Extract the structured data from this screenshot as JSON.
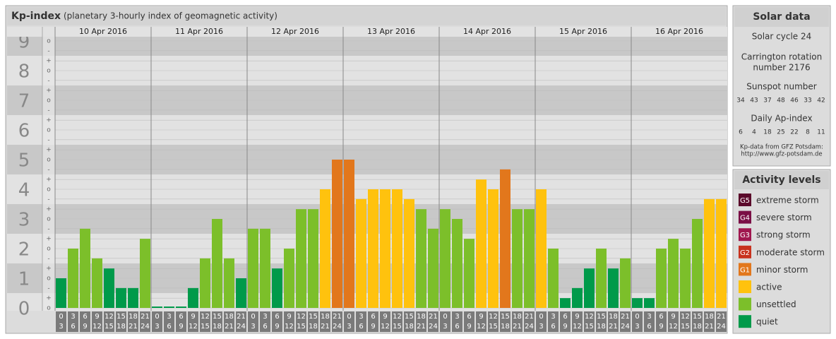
{
  "chart_data": {
    "type": "bar",
    "title": "Kp-index",
    "subtitle": "(planetary 3-hourly index of geomagnetic activity)",
    "ylim": [
      0,
      9
    ],
    "yticks": [
      0,
      1,
      2,
      3,
      4,
      5,
      6,
      7,
      8,
      9
    ],
    "minor_ticks": [
      {
        "value": 9,
        "label": "o"
      },
      {
        "value": 8.67,
        "label": "-"
      },
      {
        "value": 8.33,
        "label": "+"
      },
      {
        "value": 8,
        "label": "o"
      },
      {
        "value": 7.67,
        "label": "-"
      },
      {
        "value": 7.33,
        "label": "+"
      },
      {
        "value": 7,
        "label": "o"
      },
      {
        "value": 6.67,
        "label": "-"
      },
      {
        "value": 6.33,
        "label": "+"
      },
      {
        "value": 6,
        "label": "o"
      },
      {
        "value": 5.67,
        "label": "-"
      },
      {
        "value": 5.33,
        "label": "+"
      },
      {
        "value": 5,
        "label": "o"
      },
      {
        "value": 4.67,
        "label": "-"
      },
      {
        "value": 4.33,
        "label": "+"
      },
      {
        "value": 4,
        "label": "o"
      },
      {
        "value": 3.67,
        "label": "-"
      },
      {
        "value": 3.33,
        "label": "+"
      },
      {
        "value": 3,
        "label": "o"
      },
      {
        "value": 2.67,
        "label": "-"
      },
      {
        "value": 2.33,
        "label": "+"
      },
      {
        "value": 2,
        "label": "o"
      },
      {
        "value": 1.67,
        "label": "-"
      },
      {
        "value": 1.33,
        "label": "+"
      },
      {
        "value": 1,
        "label": "o"
      },
      {
        "value": 0.67,
        "label": "-"
      },
      {
        "value": 0.33,
        "label": "+"
      },
      {
        "value": 0,
        "label": "o"
      }
    ],
    "time_slots": [
      {
        "start": 0,
        "end": 3
      },
      {
        "start": 3,
        "end": 6
      },
      {
        "start": 6,
        "end": 9
      },
      {
        "start": 9,
        "end": 12
      },
      {
        "start": 12,
        "end": 15
      },
      {
        "start": 15,
        "end": 18
      },
      {
        "start": 18,
        "end": 21
      },
      {
        "start": 21,
        "end": 24
      }
    ],
    "days": [
      {
        "date": "10 Apr 2016",
        "values": [
          1,
          2,
          2.67,
          1.67,
          1.33,
          0.67,
          0.67,
          2.33
        ],
        "colors": [
          "#009a4a",
          "#7cbf2a",
          "#7cbf2a",
          "#7cbf2a",
          "#009a4a",
          "#009a4a",
          "#009a4a",
          "#7cbf2a"
        ]
      },
      {
        "date": "11 Apr 2016",
        "values": [
          0,
          0,
          0,
          0.67,
          1.67,
          3,
          1.67,
          1
        ],
        "colors": [
          "#009a4a",
          "#009a4a",
          "#009a4a",
          "#009a4a",
          "#7cbf2a",
          "#7cbf2a",
          "#7cbf2a",
          "#009a4a"
        ]
      },
      {
        "date": "12 Apr 2016",
        "values": [
          2.67,
          2.67,
          1.33,
          2,
          3.33,
          3.33,
          4,
          5
        ],
        "colors": [
          "#7cbf2a",
          "#7cbf2a",
          "#009a4a",
          "#7cbf2a",
          "#7cbf2a",
          "#7cbf2a",
          "#ffc20e",
          "#e2771c"
        ]
      },
      {
        "date": "13 Apr 2016",
        "values": [
          5,
          3.67,
          4,
          4,
          4,
          3.67,
          3.33,
          2.67
        ],
        "colors": [
          "#e2771c",
          "#ffc20e",
          "#ffc20e",
          "#ffc20e",
          "#ffc20e",
          "#ffc20e",
          "#7cbf2a",
          "#7cbf2a"
        ]
      },
      {
        "date": "14 Apr 2016",
        "values": [
          3.33,
          3,
          2.33,
          4.33,
          4,
          4.67,
          3.33,
          3.33
        ],
        "colors": [
          "#7cbf2a",
          "#7cbf2a",
          "#7cbf2a",
          "#ffc20e",
          "#ffc20e",
          "#e2771c",
          "#7cbf2a",
          "#7cbf2a"
        ]
      },
      {
        "date": "15 Apr 2016",
        "values": [
          4,
          2,
          0.33,
          0.67,
          1.33,
          2,
          1.33,
          1.67
        ],
        "colors": [
          "#ffc20e",
          "#7cbf2a",
          "#009a4a",
          "#009a4a",
          "#009a4a",
          "#7cbf2a",
          "#009a4a",
          "#7cbf2a"
        ]
      },
      {
        "date": "16 Apr 2016",
        "values": [
          0.33,
          0.33,
          2,
          2.33,
          2,
          3,
          3.67,
          3.67
        ],
        "colors": [
          "#009a4a",
          "#009a4a",
          "#7cbf2a",
          "#7cbf2a",
          "#7cbf2a",
          "#7cbf2a",
          "#ffc20e",
          "#ffc20e"
        ]
      }
    ]
  },
  "solar_data": {
    "title": "Solar data",
    "cycle": "Solar cycle 24",
    "carrington": [
      "Carrington rotation",
      "number 2176"
    ],
    "sunspot_title": "Sunspot number",
    "sunspot": [
      34,
      43,
      37,
      48,
      46,
      33,
      42
    ],
    "ap_title": "Daily Ap-index",
    "ap": [
      6,
      4,
      18,
      25,
      22,
      8,
      11
    ],
    "source": [
      "Kp-data from GFZ Potsdam:",
      "http://www.gfz-potsdam.de"
    ]
  },
  "activity_levels": {
    "title": "Activity levels",
    "items": [
      {
        "code": "G5",
        "label": "extreme storm",
        "color": "#5a0a2a"
      },
      {
        "code": "G4",
        "label": "severe storm",
        "color": "#7a0f45"
      },
      {
        "code": "G3",
        "label": "strong storm",
        "color": "#a0174f"
      },
      {
        "code": "G2",
        "label": "moderate storm",
        "color": "#c8321e"
      },
      {
        "code": "G1",
        "label": "minor storm",
        "color": "#e2771c"
      },
      {
        "code": null,
        "label": "active",
        "color": "#ffc20e"
      },
      {
        "code": null,
        "label": "unsettled",
        "color": "#7cbf2a"
      },
      {
        "code": null,
        "label": "quiet",
        "color": "#009a4a"
      }
    ]
  }
}
